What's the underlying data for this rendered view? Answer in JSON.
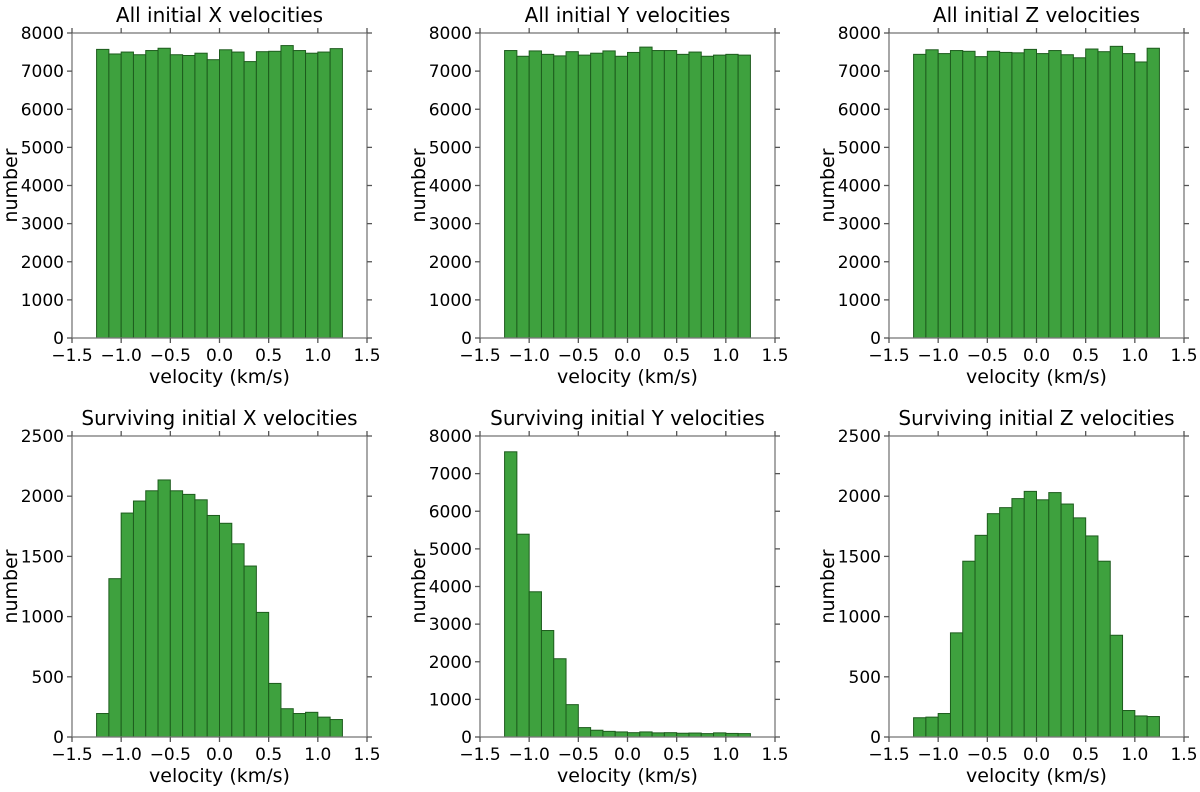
{
  "figure": {
    "background": "#ffffff",
    "grid_rows": 2,
    "grid_cols": 3
  },
  "colors": {
    "bar_fill": "#3ea13e",
    "bar_edge": "#1d5c1d",
    "spine": "#787878",
    "tick": "#555555",
    "text": "#000000"
  },
  "chart_data": [
    {
      "type": "bar",
      "title": "All initial X velocities",
      "xlabel": "velocity (km/s)",
      "ylabel": "number",
      "xlim": [
        -1.5,
        1.5
      ],
      "ylim": [
        0,
        8000
      ],
      "xticks": [
        -1.5,
        -1.0,
        -0.5,
        0.0,
        0.5,
        1.0,
        1.5
      ],
      "xtick_labels": [
        "−1.5",
        "−1.0",
        "−0.5",
        "0.0",
        "0.5",
        "1.0",
        "1.5"
      ],
      "yticks": [
        0,
        1000,
        2000,
        3000,
        4000,
        5000,
        6000,
        7000,
        8000
      ],
      "bin_start": -1.25,
      "bin_width": 0.125,
      "values": [
        7570,
        7450,
        7500,
        7430,
        7540,
        7600,
        7430,
        7410,
        7470,
        7300,
        7560,
        7500,
        7250,
        7510,
        7520,
        7670,
        7540,
        7470,
        7500,
        7590
      ]
    },
    {
      "type": "bar",
      "title": "All initial Y velocities",
      "xlabel": "velocity (km/s)",
      "ylabel": "number",
      "xlim": [
        -1.5,
        1.5
      ],
      "ylim": [
        0,
        8000
      ],
      "xticks": [
        -1.5,
        -1.0,
        -0.5,
        0.0,
        0.5,
        1.0,
        1.5
      ],
      "xtick_labels": [
        "−1.5",
        "−1.0",
        "−0.5",
        "0.0",
        "0.5",
        "1.0",
        "1.5"
      ],
      "yticks": [
        0,
        1000,
        2000,
        3000,
        4000,
        5000,
        6000,
        7000,
        8000
      ],
      "bin_start": -1.25,
      "bin_width": 0.125,
      "values": [
        7540,
        7390,
        7530,
        7440,
        7400,
        7510,
        7420,
        7470,
        7530,
        7390,
        7490,
        7630,
        7540,
        7540,
        7440,
        7500,
        7390,
        7420,
        7440,
        7420
      ]
    },
    {
      "type": "bar",
      "title": "All initial Z velocities",
      "xlabel": "velocity (km/s)",
      "ylabel": "number",
      "xlim": [
        -1.5,
        1.5
      ],
      "ylim": [
        0,
        8000
      ],
      "xticks": [
        -1.5,
        -1.0,
        -0.5,
        0.0,
        0.5,
        1.0,
        1.5
      ],
      "xtick_labels": [
        "−1.5",
        "−1.0",
        "−0.5",
        "0.0",
        "0.5",
        "1.0",
        "1.5"
      ],
      "yticks": [
        0,
        1000,
        2000,
        3000,
        4000,
        5000,
        6000,
        7000,
        8000
      ],
      "bin_start": -1.25,
      "bin_width": 0.125,
      "values": [
        7440,
        7560,
        7460,
        7540,
        7520,
        7380,
        7520,
        7490,
        7480,
        7570,
        7460,
        7540,
        7430,
        7350,
        7580,
        7510,
        7650,
        7460,
        7240,
        7600
      ]
    },
    {
      "type": "bar",
      "title": "Surviving initial X velocities",
      "xlabel": "velocity (km/s)",
      "ylabel": "number",
      "xlim": [
        -1.5,
        1.5
      ],
      "ylim": [
        0,
        2500
      ],
      "xticks": [
        -1.5,
        -1.0,
        -0.5,
        0.0,
        0.5,
        1.0,
        1.5
      ],
      "xtick_labels": [
        "−1.5",
        "−1.0",
        "−0.5",
        "0.0",
        "0.5",
        "1.0",
        "1.5"
      ],
      "yticks": [
        0,
        500,
        1000,
        1500,
        2000,
        2500
      ],
      "bin_start": -1.25,
      "bin_width": 0.125,
      "values": [
        195,
        1315,
        1860,
        1960,
        2045,
        2135,
        2045,
        2015,
        1970,
        1840,
        1775,
        1605,
        1420,
        1035,
        445,
        235,
        195,
        205,
        165,
        145
      ]
    },
    {
      "type": "bar",
      "title": "Surviving initial Y velocities",
      "xlabel": "velocity (km/s)",
      "ylabel": "number",
      "xlim": [
        -1.5,
        1.5
      ],
      "ylim": [
        0,
        8000
      ],
      "xticks": [
        -1.5,
        -1.0,
        -0.5,
        0.0,
        0.5,
        1.0,
        1.5
      ],
      "xtick_labels": [
        "−1.5",
        "−1.0",
        "−0.5",
        "0.0",
        "0.5",
        "1.0",
        "1.5"
      ],
      "yticks": [
        0,
        1000,
        2000,
        3000,
        4000,
        5000,
        6000,
        7000,
        8000
      ],
      "bin_start": -1.25,
      "bin_width": 0.125,
      "values": [
        7580,
        5390,
        3860,
        2830,
        2080,
        860,
        250,
        180,
        150,
        135,
        115,
        135,
        110,
        115,
        100,
        105,
        90,
        110,
        95,
        90
      ]
    },
    {
      "type": "bar",
      "title": "Surviving initial Z velocities",
      "xlabel": "velocity (km/s)",
      "ylabel": "number",
      "xlim": [
        -1.5,
        1.5
      ],
      "ylim": [
        0,
        2500
      ],
      "xticks": [
        -1.5,
        -1.0,
        -0.5,
        0.0,
        0.5,
        1.0,
        1.5
      ],
      "xtick_labels": [
        "−1.5",
        "−1.0",
        "−0.5",
        "0.0",
        "0.5",
        "1.0",
        "1.5"
      ],
      "yticks": [
        0,
        500,
        1000,
        1500,
        2000,
        2500
      ],
      "bin_start": -1.25,
      "bin_width": 0.125,
      "values": [
        160,
        165,
        195,
        865,
        1460,
        1675,
        1855,
        1905,
        1980,
        2040,
        1970,
        2030,
        1935,
        1820,
        1670,
        1460,
        845,
        220,
        175,
        170
      ]
    }
  ]
}
